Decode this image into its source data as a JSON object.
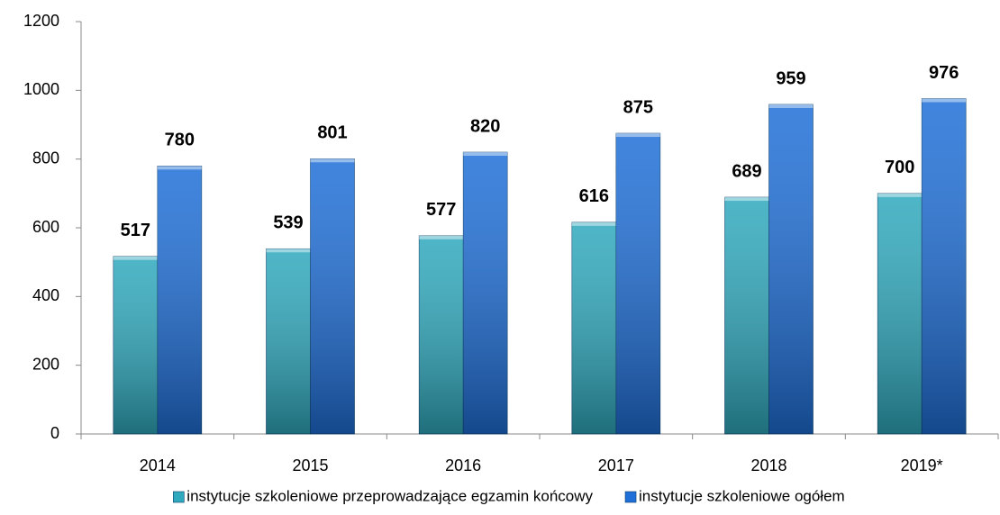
{
  "chart_data": {
    "type": "bar",
    "categories": [
      "2014",
      "2015",
      "2016",
      "2017",
      "2018",
      "2019*"
    ],
    "series": [
      {
        "name": "instytucje szkoleniowe przeprowadzające egzamin końcowy",
        "color": "#2fa9bd",
        "values": [
          517,
          539,
          577,
          616,
          689,
          700
        ]
      },
      {
        "name": "instytucje szkoleniowe ogółem",
        "color": "#1f6fd8",
        "values": [
          780,
          801,
          820,
          875,
          959,
          976
        ]
      }
    ],
    "ylim": [
      0,
      1200
    ],
    "yticks": [
      0,
      200,
      400,
      600,
      800,
      1000,
      1200
    ],
    "grid": false,
    "legend": "bottom"
  }
}
